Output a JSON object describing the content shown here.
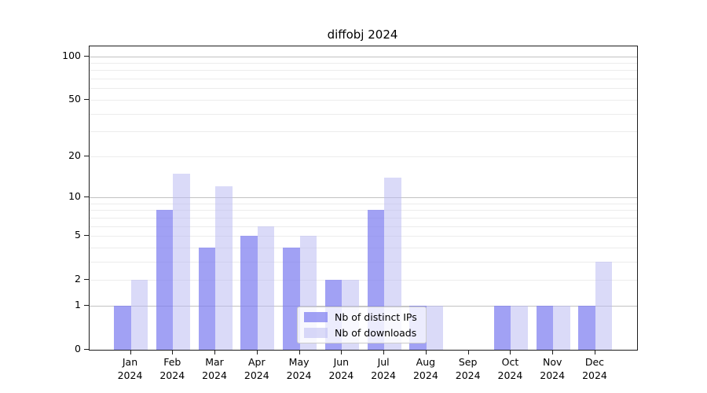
{
  "chart_data": {
    "type": "bar",
    "title": "diffobj 2024",
    "categories": [
      "Jan",
      "Feb",
      "Mar",
      "Apr",
      "May",
      "Jun",
      "Jul",
      "Aug",
      "Sep",
      "Oct",
      "Nov",
      "Dec"
    ],
    "x_year_label": "2024",
    "series": [
      {
        "name": "Nb of distinct IPs",
        "color": "#7d7df0",
        "alpha": 0.72,
        "values": [
          1,
          8,
          4,
          5,
          4,
          2,
          8,
          1,
          0,
          1,
          1,
          1
        ]
      },
      {
        "name": "Nb of downloads",
        "color": "#b9b9f2",
        "alpha": 0.52,
        "values": [
          2,
          15,
          12,
          6,
          5,
          2,
          14,
          1,
          0,
          1,
          1,
          3
        ]
      }
    ],
    "yscale": "log1p",
    "ylim": [
      0,
      117
    ],
    "y_ticks": [
      0,
      1,
      2,
      5,
      10,
      20,
      50,
      100
    ],
    "major_gridlines": [
      1,
      10,
      100
    ],
    "minor_gridlines": [
      2,
      3,
      4,
      5,
      6,
      7,
      8,
      9,
      20,
      30,
      40,
      50,
      60,
      70,
      80,
      90
    ],
    "grid_color_major": "#c2c2c2",
    "grid_color_minor": "#ececec",
    "legend_position": "lower center"
  }
}
